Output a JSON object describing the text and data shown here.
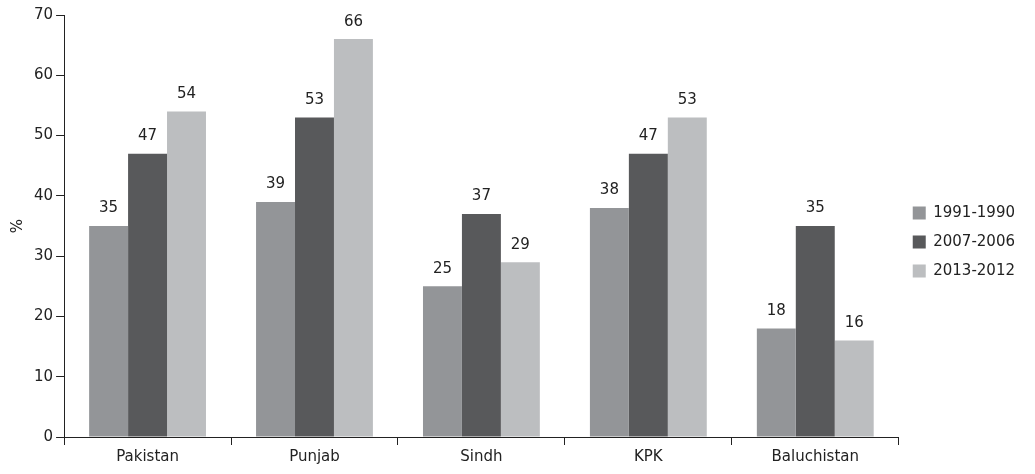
{
  "chart_data": {
    "type": "bar",
    "ylabel": "%",
    "categories": [
      "Pakistan",
      "Punjab",
      "Sindh",
      "KPK",
      "Baluchistan"
    ],
    "series": [
      {
        "name": "1991-1990",
        "color": "#939598",
        "values": [
          35,
          39,
          25,
          38,
          18
        ]
      },
      {
        "name": "2007-2006",
        "color": "#58595b",
        "values": [
          47,
          53,
          37,
          47,
          35
        ]
      },
      {
        "name": "2013-2012",
        "color": "#bcbec0",
        "values": [
          54,
          66,
          29,
          53,
          16
        ]
      }
    ],
    "ylim": [
      0,
      70
    ],
    "yticks": [
      0,
      10,
      20,
      30,
      40,
      50,
      60,
      70
    ],
    "grid": false,
    "legend": "right",
    "data_labels": true
  }
}
